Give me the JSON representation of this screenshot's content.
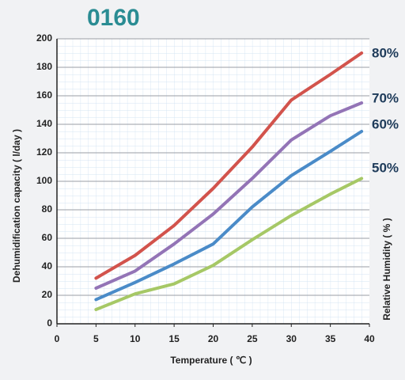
{
  "chart_data": {
    "type": "line",
    "title": "0160",
    "x_label": "Temperature ( ℃ )",
    "y_label": "Dehumidification capacity ( l/day )",
    "y2_label": "Relative Humidity ( % )",
    "x": [
      5,
      10,
      15,
      20,
      25,
      30,
      35,
      39
    ],
    "series": [
      {
        "name": "80%",
        "color": "#d2534c",
        "values": [
          32,
          48,
          69,
          95,
          124,
          157,
          175,
          190
        ]
      },
      {
        "name": "70%",
        "color": "#9374b6",
        "values": [
          25,
          37,
          56,
          77,
          102,
          129,
          146,
          155
        ]
      },
      {
        "name": "60%",
        "color": "#4a8bc8",
        "values": [
          17,
          29,
          42,
          56,
          82,
          104,
          121,
          135
        ]
      },
      {
        "name": "50%",
        "color": "#a6c866",
        "values": [
          10,
          21,
          28,
          41,
          59,
          76,
          91,
          102
        ]
      }
    ],
    "xlim": [
      0,
      40
    ],
    "xticks": [
      0,
      5,
      10,
      15,
      20,
      25,
      30,
      35,
      40
    ],
    "ylim": [
      0,
      200
    ],
    "yticks": [
      0,
      20,
      40,
      60,
      80,
      100,
      120,
      140,
      160,
      180,
      200
    ],
    "grid": true
  }
}
